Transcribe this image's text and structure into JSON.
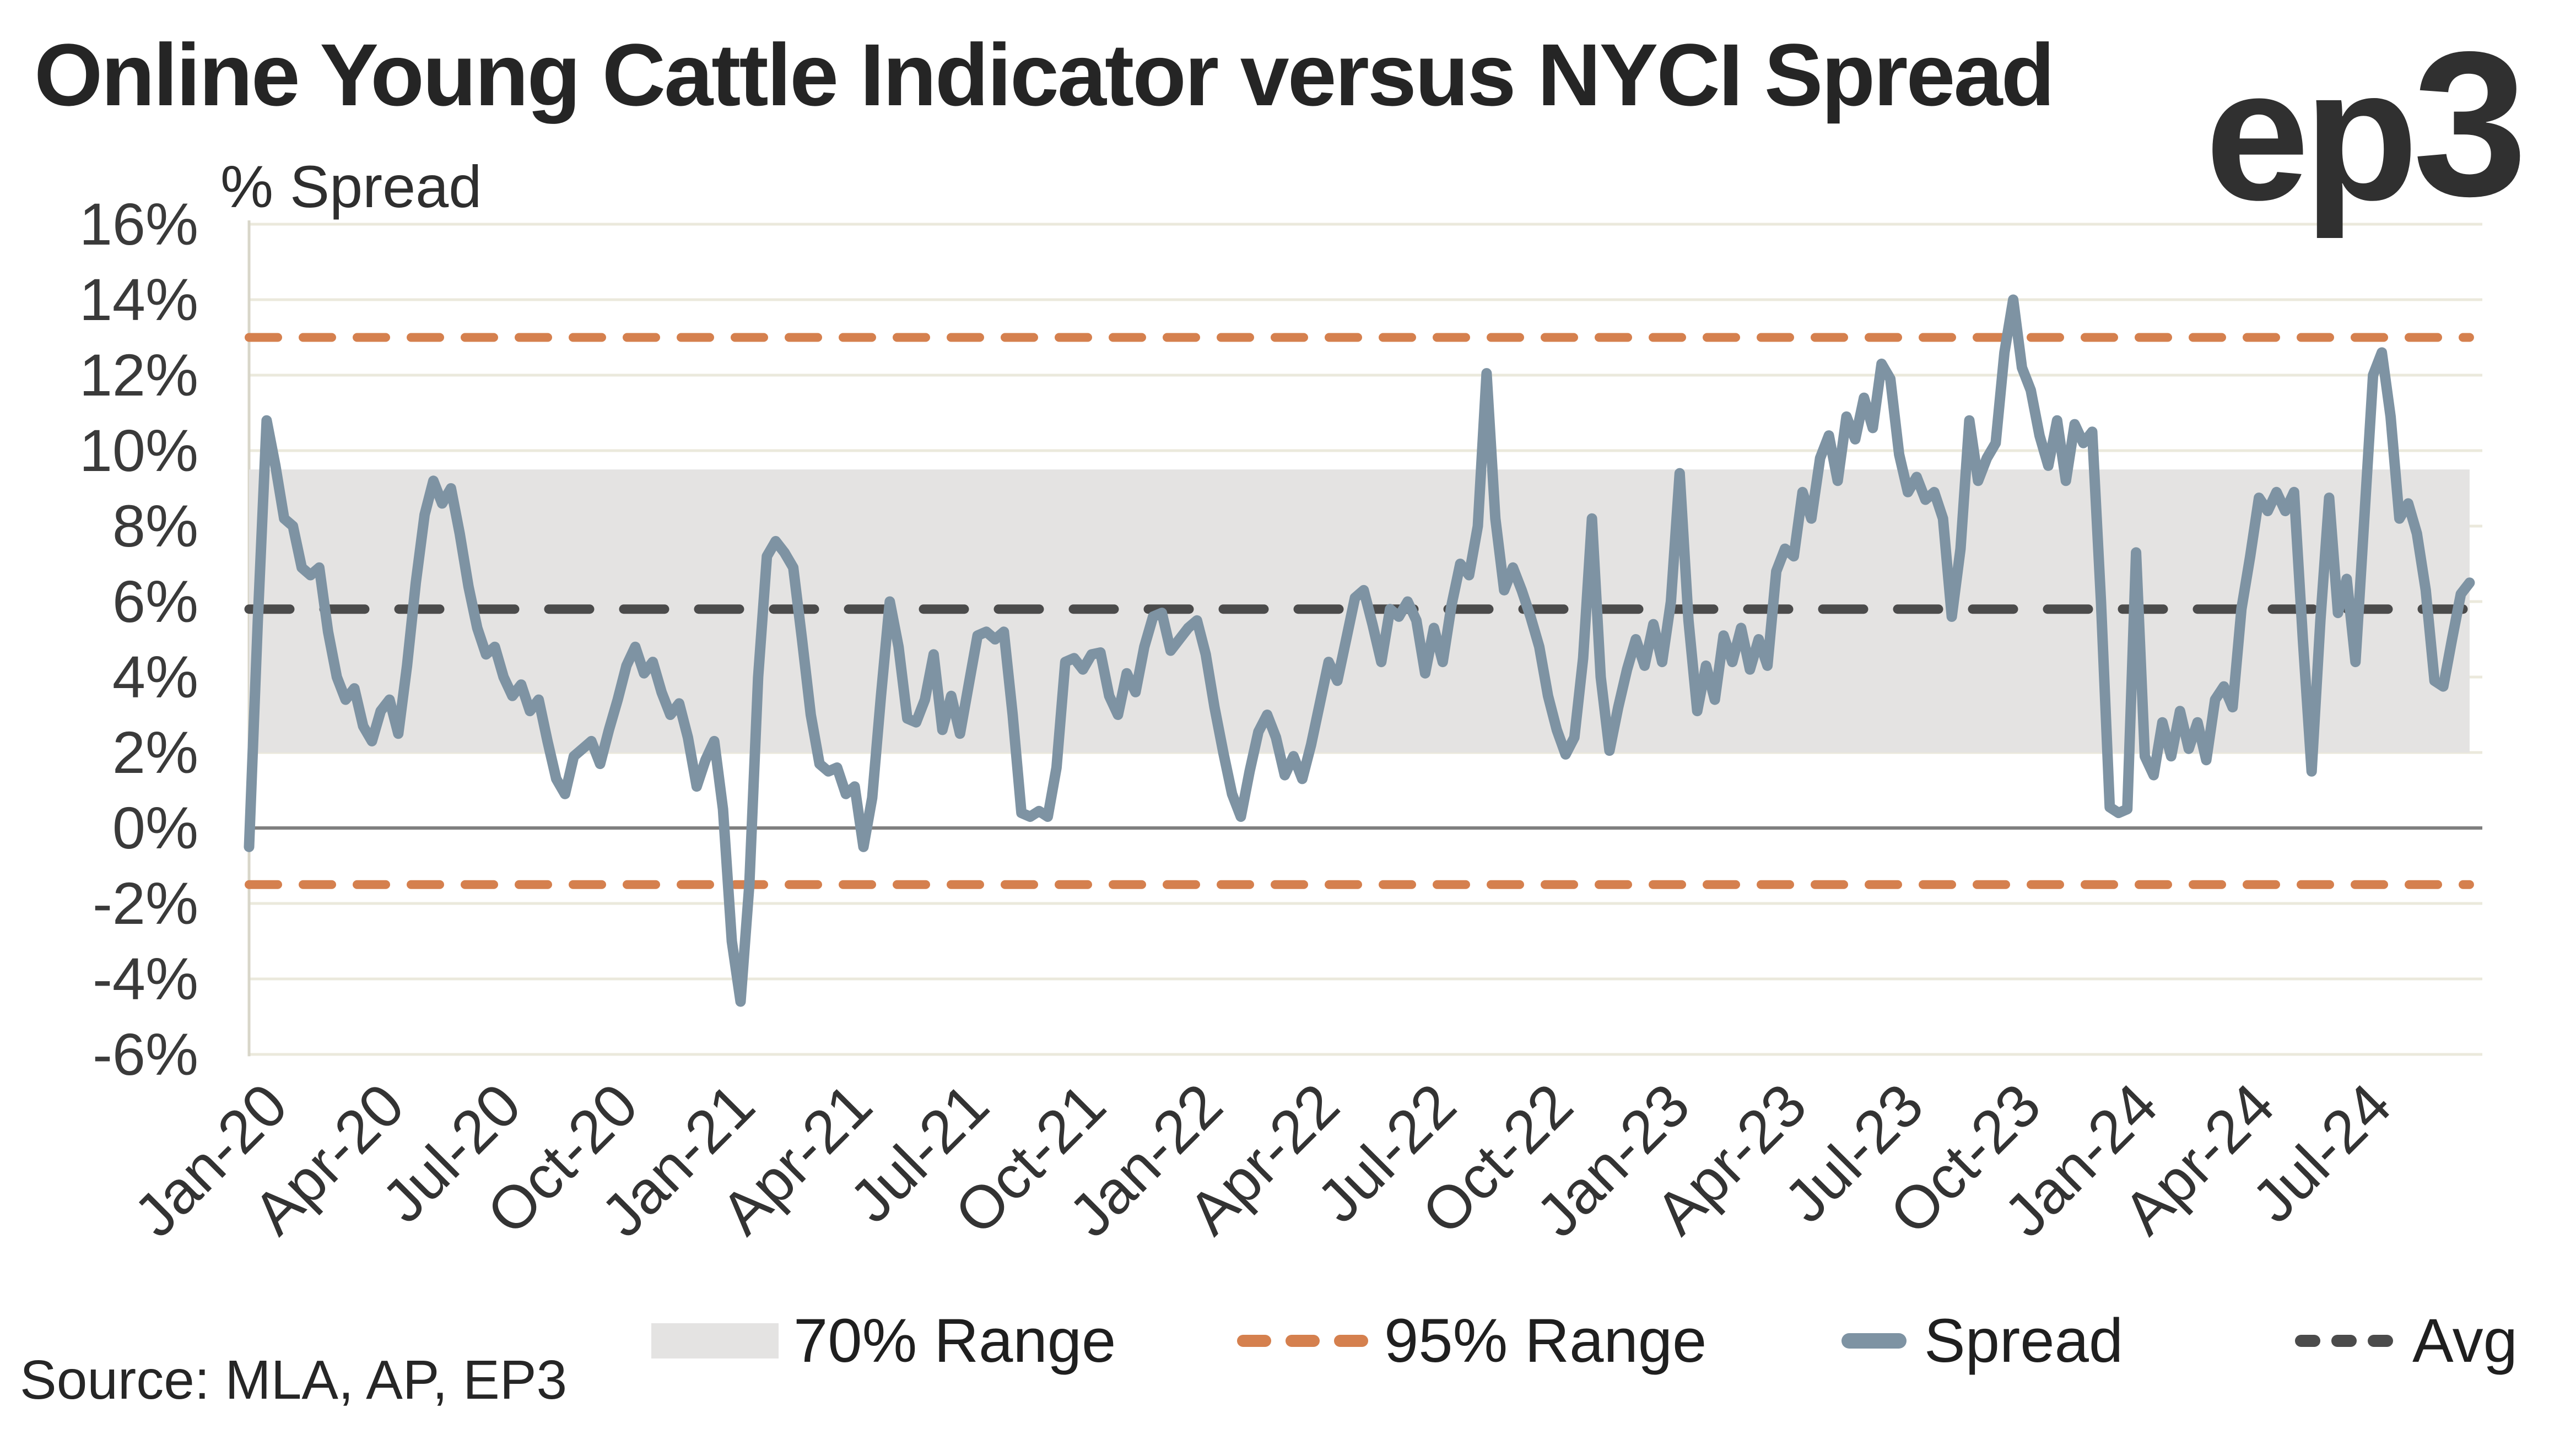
{
  "header": {
    "title": "Online Young Cattle Indicator versus NYCI Spread"
  },
  "logo": {
    "text_ep": "ep",
    "text_3": "3"
  },
  "footer": {
    "source": "Source: MLA, AP, EP3"
  },
  "legend": {
    "items": [
      {
        "label": "70% Range",
        "type": "band"
      },
      {
        "label": "95% Range",
        "type": "dash-orange"
      },
      {
        "label": "Spread",
        "type": "line"
      },
      {
        "label": "Avg",
        "type": "dash-dark"
      }
    ]
  },
  "colors": {
    "spread": "#7E93A3",
    "range95": "#D5804E",
    "avg": "#4B4B4B",
    "band70": "#E4E3E2",
    "grid": "#EBE9DC",
    "zero_line": "#7F7F7F",
    "axis_line": "#D8D6C9",
    "text": "#3A3A3A"
  },
  "chart_data": {
    "type": "line",
    "title": "Online Young Cattle Indicator versus NYCI Spread",
    "ylabel": "% Spread",
    "xlabel": "",
    "grid": true,
    "legend_position": "bottom",
    "ylim": [
      -6,
      16
    ],
    "y_ticks": [
      {
        "value": 16,
        "label": "16%"
      },
      {
        "value": 14,
        "label": "14%"
      },
      {
        "value": 12,
        "label": "12%"
      },
      {
        "value": 10,
        "label": "10%"
      },
      {
        "value": 8,
        "label": "8%"
      },
      {
        "value": 6,
        "label": "6%"
      },
      {
        "value": 4,
        "label": "4%"
      },
      {
        "value": 2,
        "label": "2%"
      },
      {
        "value": 0,
        "label": "0%"
      },
      {
        "value": -2,
        "label": "-2%"
      },
      {
        "value": -4,
        "label": "-4%"
      },
      {
        "value": -6,
        "label": "-6%"
      }
    ],
    "x_tick_labels": [
      "Jan-20",
      "Apr-20",
      "Jul-20",
      "Oct-20",
      "Jan-21",
      "Apr-21",
      "Jul-21",
      "Oct-21",
      "Jan-22",
      "Apr-22",
      "Jul-22",
      "Oct-22",
      "Jan-23",
      "Apr-23",
      "Jul-23",
      "Oct-23",
      "Jan-24",
      "Apr-24",
      "Jul-24"
    ],
    "x_ticks_months": [
      0,
      3,
      6,
      9,
      12,
      15,
      18,
      21,
      24,
      27,
      30,
      33,
      36,
      39,
      42,
      45,
      48,
      51,
      54
    ],
    "months_total": 57,
    "avg": 5.8,
    "band_70": {
      "low": 2.0,
      "high": 9.5,
      "label": "70% Range"
    },
    "range_95": {
      "low": -1.5,
      "high": 13.0,
      "label": "95% Range"
    },
    "series": [
      {
        "name": "Spread",
        "frequency": "weekly",
        "start_month": 0,
        "end_month": 57,
        "values": [
          -0.5,
          5.5,
          10.8,
          9.6,
          8.2,
          8.0,
          6.9,
          6.7,
          6.9,
          5.2,
          4.0,
          3.4,
          3.7,
          2.7,
          2.3,
          3.1,
          3.4,
          2.5,
          4.3,
          6.5,
          8.3,
          9.2,
          8.6,
          9.0,
          7.8,
          6.4,
          5.3,
          4.6,
          4.8,
          4.0,
          3.5,
          3.8,
          3.1,
          3.4,
          2.3,
          1.3,
          0.9,
          1.9,
          2.1,
          2.3,
          1.7,
          2.6,
          3.4,
          4.3,
          4.8,
          4.1,
          4.4,
          3.6,
          3.0,
          3.3,
          2.4,
          1.1,
          1.8,
          2.3,
          0.5,
          -3.0,
          -4.6,
          -1.5,
          4.0,
          7.2,
          7.6,
          7.3,
          6.9,
          5.0,
          3.0,
          1.7,
          1.5,
          1.6,
          0.9,
          1.1,
          -0.5,
          0.8,
          3.5,
          6.0,
          4.8,
          2.9,
          2.8,
          3.4,
          4.6,
          2.6,
          3.5,
          2.5,
          3.8,
          5.1,
          5.2,
          5.0,
          5.2,
          3.0,
          0.4,
          0.3,
          0.45,
          0.3,
          1.6,
          4.4,
          4.5,
          4.2,
          4.6,
          4.65,
          3.5,
          3.0,
          4.1,
          3.6,
          4.8,
          5.6,
          5.7,
          4.7,
          5.0,
          5.3,
          5.5,
          4.6,
          3.2,
          2.0,
          0.9,
          0.3,
          1.5,
          2.55,
          3.0,
          2.4,
          1.4,
          1.9,
          1.3,
          2.2,
          3.3,
          4.4,
          3.9,
          5.0,
          6.1,
          6.3,
          5.4,
          4.4,
          5.8,
          5.6,
          6.0,
          5.5,
          4.1,
          5.3,
          4.4,
          5.9,
          7.0,
          6.7,
          8.0,
          12.05,
          8.2,
          6.3,
          6.9,
          6.3,
          5.6,
          4.8,
          3.5,
          2.6,
          1.95,
          2.4,
          4.5,
          8.2,
          4.0,
          2.05,
          3.2,
          4.2,
          5.0,
          4.3,
          5.4,
          4.4,
          6.0,
          9.4,
          5.5,
          3.1,
          4.3,
          3.4,
          5.1,
          4.4,
          5.3,
          4.2,
          5.0,
          4.3,
          6.8,
          7.4,
          7.2,
          8.9,
          8.2,
          9.8,
          10.4,
          9.2,
          10.9,
          10.3,
          11.4,
          10.6,
          12.3,
          11.9,
          9.9,
          8.9,
          9.3,
          8.7,
          8.9,
          8.2,
          5.6,
          7.4,
          10.8,
          9.2,
          9.8,
          10.2,
          12.6,
          14.0,
          12.2,
          11.6,
          10.4,
          9.6,
          10.8,
          9.2,
          10.7,
          10.2,
          10.5,
          6.0,
          0.55,
          0.4,
          0.5,
          7.3,
          1.9,
          1.4,
          2.8,
          1.9,
          3.1,
          2.1,
          2.8,
          1.8,
          3.4,
          3.75,
          3.2,
          5.8,
          7.2,
          8.75,
          8.4,
          8.9,
          8.4,
          8.9,
          5.0,
          1.5,
          5.5,
          8.75,
          5.7,
          6.6,
          4.4,
          8.2,
          12.0,
          12.6,
          10.9,
          8.2,
          8.6,
          7.8,
          6.3,
          3.9,
          3.75,
          5.0,
          6.2,
          6.5
        ]
      }
    ]
  }
}
